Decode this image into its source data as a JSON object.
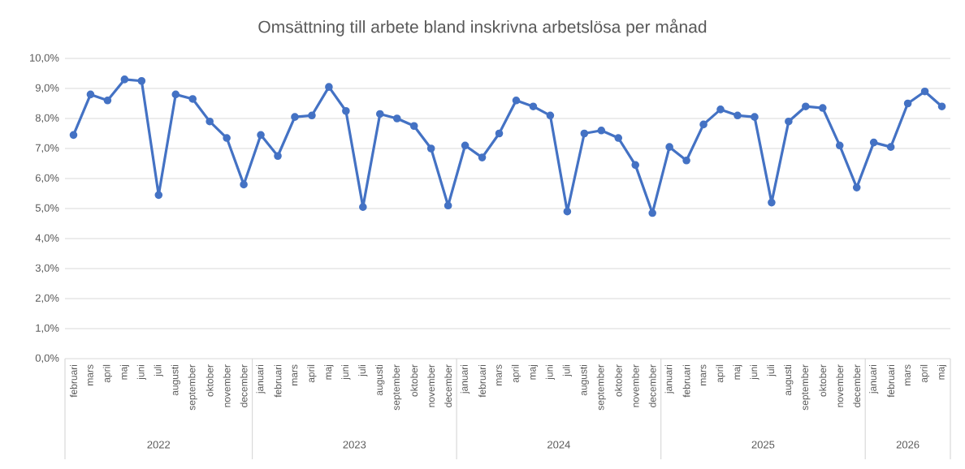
{
  "chart_data": {
    "type": "line",
    "title": "Omsättning till arbete bland inskrivna arbetslösa per månad",
    "categories": [
      "februari",
      "mars",
      "april",
      "maj",
      "juni",
      "juli",
      "augusti",
      "september",
      "oktober",
      "november",
      "december",
      "januari",
      "februari",
      "mars",
      "april",
      "maj",
      "juni",
      "juli",
      "augusti",
      "september",
      "oktober",
      "november",
      "december",
      "januari",
      "februari",
      "mars",
      "april",
      "maj",
      "juni",
      "juli",
      "augusti",
      "september",
      "oktober",
      "november",
      "december",
      "januari",
      "februari",
      "mars",
      "april",
      "maj",
      "juni",
      "juli",
      "augusti",
      "september",
      "oktober",
      "november",
      "december",
      "januari",
      "februari",
      "mars",
      "april",
      "maj"
    ],
    "series": [
      {
        "color": "#4472c4",
        "values": [
          7.45,
          8.8,
          8.6,
          9.3,
          9.25,
          5.45,
          8.8,
          8.65,
          7.9,
          7.35,
          5.8,
          7.45,
          6.75,
          8.05,
          8.1,
          9.05,
          8.25,
          5.05,
          8.15,
          8.0,
          7.75,
          7.0,
          5.1,
          7.1,
          6.7,
          7.5,
          8.6,
          8.4,
          8.1,
          4.9,
          7.5,
          7.6,
          7.35,
          6.45,
          4.85,
          7.05,
          6.6,
          7.8,
          8.3,
          8.1,
          8.05,
          5.2,
          7.9,
          8.4,
          8.35,
          7.1,
          5.7,
          7.2,
          7.05,
          8.5,
          8.9,
          8.4
        ]
      }
    ],
    "ylim": [
      0,
      10
    ],
    "yticks": [
      {
        "value": 0,
        "label": "0,0%"
      },
      {
        "value": 1,
        "label": "1,0%"
      },
      {
        "value": 2,
        "label": "2,0%"
      },
      {
        "value": 3,
        "label": "3,0%"
      },
      {
        "value": 4,
        "label": "4,0%"
      },
      {
        "value": 5,
        "label": "5,0%"
      },
      {
        "value": 6,
        "label": "6,0%"
      },
      {
        "value": 7,
        "label": "7,0%"
      },
      {
        "value": 8,
        "label": "8,0%"
      },
      {
        "value": 9,
        "label": "9,0%"
      },
      {
        "value": 10,
        "label": "10,0%"
      }
    ],
    "annotations": [
      "2022",
      "2023",
      "2024",
      "2025",
      "2026"
    ],
    "grid": "y",
    "marker": "circle",
    "line_style": "solid"
  }
}
